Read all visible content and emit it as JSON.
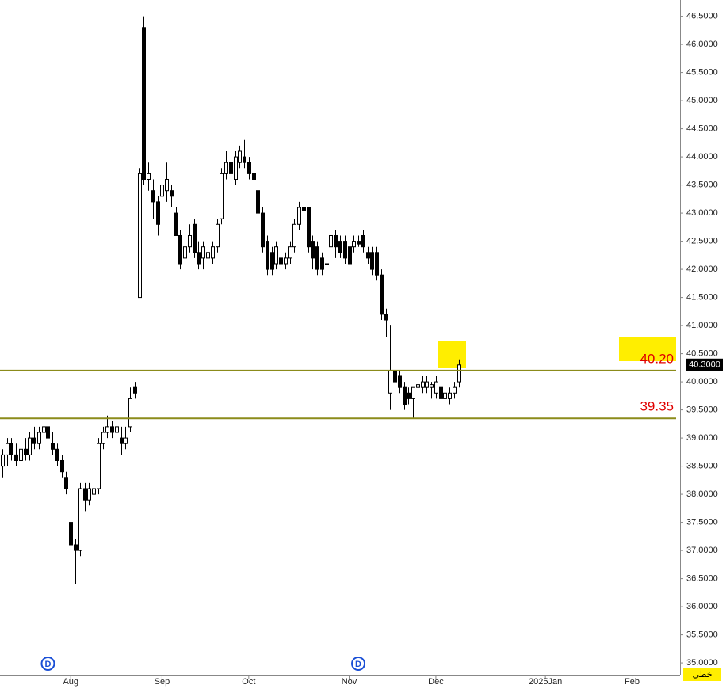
{
  "chart_data": {
    "type": "candlestick",
    "ohlc": [
      [
        38.5,
        38.8,
        38.3,
        38.7
      ],
      [
        38.7,
        39.0,
        38.5,
        38.9
      ],
      [
        38.9,
        39.0,
        38.6,
        38.7
      ],
      [
        38.7,
        38.9,
        38.5,
        38.6
      ],
      [
        38.6,
        38.9,
        38.5,
        38.8
      ],
      [
        38.8,
        39.0,
        38.6,
        38.7
      ],
      [
        38.7,
        39.1,
        38.6,
        39.0
      ],
      [
        39.0,
        39.2,
        38.8,
        38.9
      ],
      [
        38.9,
        39.2,
        38.8,
        39.1
      ],
      [
        39.1,
        39.3,
        38.9,
        39.2
      ],
      [
        39.2,
        39.3,
        38.9,
        39.0
      ],
      [
        38.9,
        39.1,
        38.7,
        38.8
      ],
      [
        38.8,
        38.9,
        38.5,
        38.6
      ],
      [
        38.6,
        38.7,
        38.3,
        38.4
      ],
      [
        38.3,
        38.4,
        38.0,
        38.1
      ],
      [
        37.5,
        37.7,
        37.0,
        37.1
      ],
      [
        37.1,
        37.2,
        36.4,
        37.0
      ],
      [
        37.0,
        38.2,
        36.9,
        38.1
      ],
      [
        38.1,
        38.2,
        37.7,
        37.9
      ],
      [
        37.9,
        38.2,
        37.8,
        38.1
      ],
      [
        38.0,
        38.2,
        37.9,
        38.1
      ],
      [
        38.1,
        39.0,
        38.0,
        38.9
      ],
      [
        38.9,
        39.2,
        38.8,
        39.1
      ],
      [
        39.1,
        39.4,
        39.0,
        39.2
      ],
      [
        39.2,
        39.3,
        39.0,
        39.1
      ],
      [
        39.1,
        39.3,
        38.9,
        39.2
      ],
      [
        39.0,
        39.2,
        38.7,
        38.9
      ],
      [
        38.9,
        39.2,
        38.8,
        39.0
      ],
      [
        39.2,
        39.9,
        39.1,
        39.7
      ],
      [
        39.9,
        40.0,
        39.7,
        39.8
      ],
      [
        41.5,
        43.8,
        41.5,
        43.7
      ],
      [
        46.3,
        46.5,
        43.5,
        43.6
      ],
      [
        43.6,
        43.9,
        43.4,
        43.7
      ],
      [
        43.4,
        43.6,
        42.9,
        43.2
      ],
      [
        43.2,
        43.3,
        42.6,
        42.8
      ],
      [
        43.3,
        43.6,
        43.1,
        43.5
      ],
      [
        43.4,
        43.9,
        43.2,
        43.6
      ],
      [
        43.4,
        43.5,
        43.1,
        43.3
      ],
      [
        43.0,
        43.1,
        42.6,
        42.6
      ],
      [
        42.6,
        42.7,
        42.0,
        42.1
      ],
      [
        42.2,
        42.5,
        42.1,
        42.4
      ],
      [
        42.4,
        42.8,
        42.3,
        42.6
      ],
      [
        42.8,
        42.9,
        42.2,
        42.3
      ],
      [
        42.3,
        42.5,
        42.0,
        42.1
      ],
      [
        42.2,
        42.5,
        42.0,
        42.4
      ],
      [
        42.2,
        42.4,
        42.0,
        42.3
      ],
      [
        42.2,
        42.5,
        42.1,
        42.4
      ],
      [
        42.4,
        42.9,
        42.3,
        42.8
      ],
      [
        42.9,
        43.8,
        42.8,
        43.7
      ],
      [
        43.7,
        44.1,
        43.6,
        43.9
      ],
      [
        43.9,
        44.0,
        43.6,
        43.7
      ],
      [
        43.6,
        44.1,
        43.5,
        44.0
      ],
      [
        43.9,
        44.2,
        43.8,
        44.1
      ],
      [
        44.0,
        44.3,
        43.8,
        43.9
      ],
      [
        43.9,
        44.0,
        43.6,
        43.7
      ],
      [
        43.7,
        43.8,
        43.5,
        43.6
      ],
      [
        43.4,
        43.5,
        42.9,
        43.0
      ],
      [
        43.0,
        43.1,
        42.3,
        42.4
      ],
      [
        42.5,
        42.6,
        41.9,
        42.0
      ],
      [
        42.3,
        42.4,
        41.9,
        42.0
      ],
      [
        42.1,
        42.5,
        42.0,
        42.4
      ],
      [
        42.2,
        42.3,
        42.0,
        42.1
      ],
      [
        42.1,
        42.3,
        42.0,
        42.2
      ],
      [
        42.2,
        42.5,
        42.1,
        42.4
      ],
      [
        42.4,
        42.9,
        42.3,
        42.8
      ],
      [
        42.8,
        43.2,
        42.7,
        43.1
      ],
      [
        43.1,
        43.2,
        42.9,
        43.05
      ],
      [
        43.1,
        43.1,
        42.3,
        42.4
      ],
      [
        42.5,
        42.6,
        42.0,
        42.2
      ],
      [
        42.4,
        42.5,
        41.9,
        42.0
      ],
      [
        42.2,
        42.3,
        41.9,
        42.0
      ],
      [
        42.1,
        42.2,
        41.9,
        42.1
      ],
      [
        42.4,
        42.7,
        42.3,
        42.6
      ],
      [
        42.6,
        42.7,
        42.2,
        42.4
      ],
      [
        42.5,
        42.6,
        42.2,
        42.3
      ],
      [
        42.5,
        42.6,
        42.1,
        42.2
      ],
      [
        42.4,
        42.5,
        42.0,
        42.1
      ],
      [
        42.4,
        42.6,
        42.3,
        42.5
      ],
      [
        42.5,
        42.6,
        42.4,
        42.45
      ],
      [
        42.6,
        42.7,
        42.3,
        42.4
      ],
      [
        42.3,
        42.4,
        42.1,
        42.2
      ],
      [
        42.3,
        42.4,
        41.9,
        42.0
      ],
      [
        42.3,
        42.4,
        41.8,
        41.9
      ],
      [
        41.9,
        42.0,
        41.1,
        41.2
      ],
      [
        41.2,
        41.3,
        40.8,
        41.1
      ],
      [
        39.8,
        41.0,
        39.5,
        40.2
      ],
      [
        40.2,
        40.5,
        39.9,
        40.0
      ],
      [
        40.1,
        40.2,
        39.8,
        39.9
      ],
      [
        39.9,
        40.0,
        39.5,
        39.6
      ],
      [
        39.8,
        39.9,
        39.6,
        39.7
      ],
      [
        39.7,
        39.9,
        39.35,
        39.9
      ],
      [
        39.9,
        40.0,
        39.8,
        39.95
      ],
      [
        39.9,
        40.1,
        39.8,
        40.0
      ],
      [
        39.9,
        40.1,
        39.8,
        40.0
      ],
      [
        39.9,
        40.0,
        39.7,
        39.95
      ],
      [
        39.8,
        40.1,
        39.7,
        40.0
      ],
      [
        39.9,
        40.0,
        39.6,
        39.7
      ],
      [
        39.7,
        39.9,
        39.6,
        39.8
      ],
      [
        39.7,
        39.9,
        39.6,
        39.8
      ],
      [
        39.8,
        40.0,
        39.7,
        39.9
      ],
      [
        40.0,
        40.4,
        39.9,
        40.3
      ]
    ],
    "xlim": [
      -0.5,
      148.5
    ],
    "xticks": [
      {
        "value": 15,
        "label": "Aug"
      },
      {
        "value": 35,
        "label": "Sep"
      },
      {
        "value": 54,
        "label": "Oct"
      },
      {
        "value": 76,
        "label": "Nov"
      },
      {
        "value": 95,
        "label": "Dec"
      },
      {
        "value": 119,
        "label": "2025Jan"
      },
      {
        "value": 138,
        "label": "Feb"
      }
    ],
    "ylim": [
      34.79,
      46.79
    ],
    "yticks": [
      {
        "value": 35,
        "label": "35.0000"
      },
      {
        "value": 35.5,
        "label": "35.5000"
      },
      {
        "value": 36,
        "label": "36.0000"
      },
      {
        "value": 36.5,
        "label": "36.5000"
      },
      {
        "value": 37,
        "label": "37.0000"
      },
      {
        "value": 37.5,
        "label": "37.5000"
      },
      {
        "value": 38,
        "label": "38.0000"
      },
      {
        "value": 38.5,
        "label": "38.5000"
      },
      {
        "value": 39,
        "label": "39.0000"
      },
      {
        "value": 39.5,
        "label": "39.5000"
      },
      {
        "value": 40,
        "label": "40.0000"
      },
      {
        "value": 40.5,
        "label": "40.5000"
      },
      {
        "value": 41,
        "label": "41.0000"
      },
      {
        "value": 41.5,
        "label": "41.5000"
      },
      {
        "value": 42,
        "label": "42.0000"
      },
      {
        "value": 42.5,
        "label": "42.5000"
      },
      {
        "value": 43,
        "label": "43.0000"
      },
      {
        "value": 43.5,
        "label": "43.5000"
      },
      {
        "value": 44,
        "label": "44.0000"
      },
      {
        "value": 44.5,
        "label": "44.5000"
      },
      {
        "value": 45,
        "label": "45.0000"
      },
      {
        "value": 45.5,
        "label": "45.5000"
      },
      {
        "value": 46,
        "label": "46.0000"
      },
      {
        "value": 46.5,
        "label": "46.5000"
      }
    ],
    "levels": [
      {
        "value": 40.2,
        "label": "40.20"
      },
      {
        "value": 39.35,
        "label": "39.35"
      }
    ],
    "last_price": {
      "value": 40.3,
      "label": "40.3000"
    },
    "markers": [
      {
        "x": 10,
        "label": "D"
      },
      {
        "x": 78,
        "label": "D"
      }
    ],
    "scale_mode": "خطي"
  }
}
